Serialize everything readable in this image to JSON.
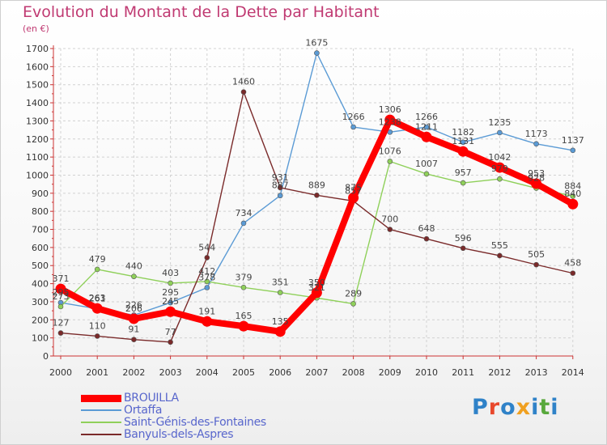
{
  "title": "Evolution du Montant de la Dette par Habitant",
  "subtitle": "(en €)",
  "logo": {
    "text": "Proxiti",
    "colors": [
      "#2f82c8",
      "#e8482c",
      "#2f82c8",
      "#f0a020",
      "#2f82c8",
      "#58a83c",
      "#2f82c8"
    ]
  },
  "chart_data": {
    "type": "line",
    "x": [
      "2000",
      "2001",
      "2002",
      "2003",
      "2004",
      "2005",
      "2006",
      "2007",
      "2008",
      "2009",
      "2010",
      "2011",
      "2012",
      "2013",
      "2014"
    ],
    "ylim": [
      0,
      1700
    ],
    "yticks": [
      0,
      100,
      200,
      300,
      400,
      500,
      600,
      700,
      800,
      900,
      1000,
      1100,
      1200,
      1300,
      1400,
      1500,
      1600,
      1700
    ],
    "grid": true,
    "legend_position": "bottom-left",
    "series": [
      {
        "name": "Ortaffa",
        "color": "#5b9bd5",
        "values": [
          295,
          261,
          226,
          295,
          378,
          734,
          887,
          1675,
          1266,
          1238,
          1266,
          1182,
          1235,
          1173,
          1137
        ],
        "labels": [
          "295",
          "261",
          "226",
          "295",
          "378",
          "734",
          "887",
          "1675",
          "1266",
          "1238",
          "1266",
          "1182",
          "1235",
          "1173",
          "1137"
        ]
      },
      {
        "name": "Saint-Génis-des-Fontaines",
        "color": "#8fd05a",
        "values": [
          273,
          479,
          440,
          403,
          412,
          379,
          351,
          321,
          289,
          1076,
          1007,
          957,
          979,
          928,
          884
        ],
        "labels": [
          "273",
          "479",
          "440",
          "403",
          "412",
          "379",
          "351",
          "321",
          "289",
          "1076",
          "1007",
          "957",
          "979",
          "928",
          "884"
        ]
      },
      {
        "name": "Banyuls-dels-Aspres",
        "color": "#7a2a2a",
        "values": [
          127,
          110,
          91,
          77,
          544,
          1460,
          931,
          889,
          857,
          700,
          648,
          596,
          555,
          505,
          458
        ],
        "labels": [
          "127",
          "110",
          "91",
          "77",
          "544",
          "1460",
          "931",
          "889",
          "857",
          "700",
          "648",
          "596",
          "555",
          "505",
          "458"
        ]
      },
      {
        "name": "BROUILLA",
        "color": "#ff0000",
        "values": [
          371,
          263,
          206,
          245,
          191,
          165,
          135,
          350,
          875,
          1306,
          1211,
          1131,
          1042,
          953,
          840
        ],
        "labels": [
          "371",
          "263",
          "206",
          "245",
          "191",
          "165",
          "135",
          "350",
          "875",
          "1306",
          "1211",
          "1131",
          "1042",
          "953",
          "840"
        ]
      }
    ],
    "legend_order": [
      "BROUILLA",
      "Ortaffa",
      "Saint-Génis-des-Fontaines",
      "Banyuls-dels-Aspres"
    ]
  }
}
